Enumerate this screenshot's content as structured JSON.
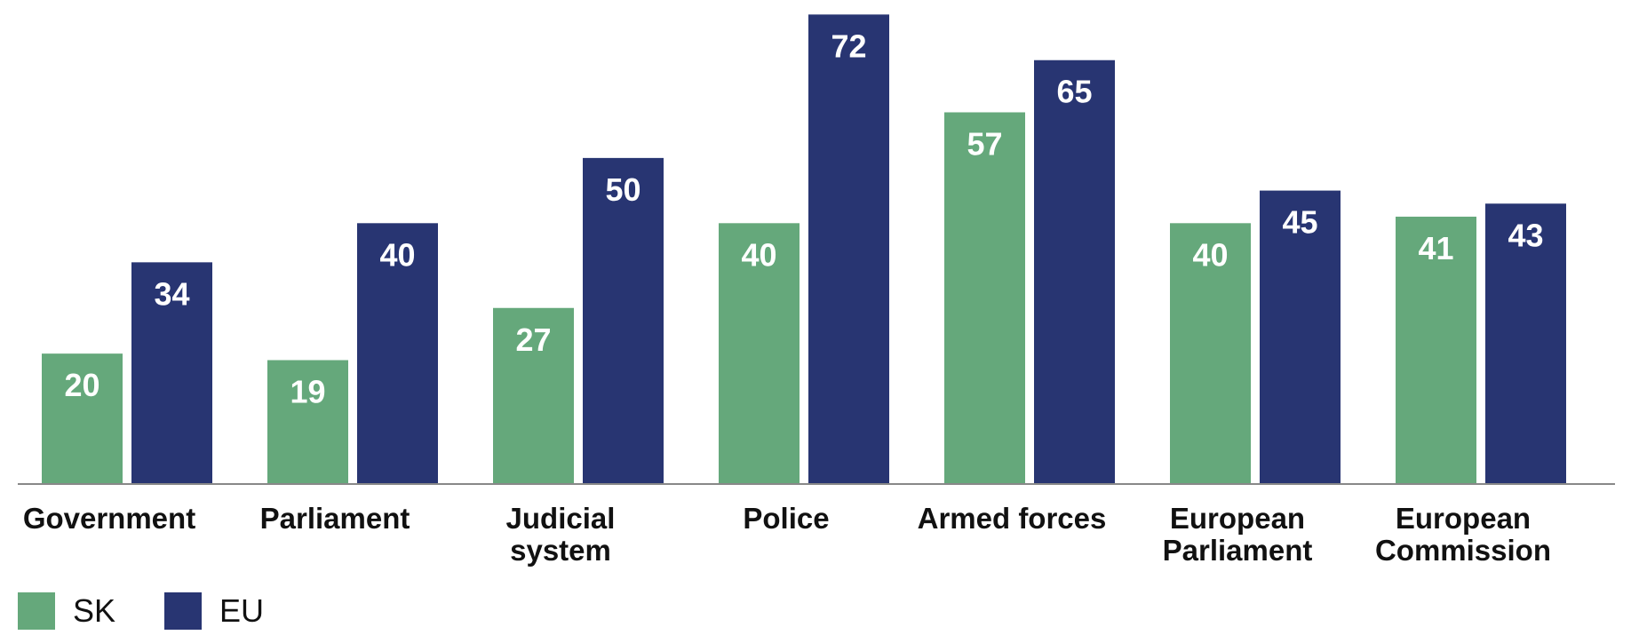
{
  "chart_data": {
    "type": "bar",
    "categories": [
      "Government",
      "Parliament",
      "Judicial system",
      "Police",
      "Armed forces",
      "European Parliament",
      "European Commission"
    ],
    "series": [
      {
        "name": "SK",
        "color": "#65a87b",
        "values": [
          20,
          19,
          27,
          40,
          57,
          40,
          41
        ]
      },
      {
        "name": "EU",
        "color": "#283572",
        "values": [
          34,
          40,
          50,
          72,
          65,
          45,
          43
        ]
      }
    ],
    "title": "",
    "xlabel": "",
    "ylabel": "",
    "ylim": [
      0,
      73
    ],
    "grid": false,
    "legend_position": "bottom-left",
    "data_labels": true
  }
}
